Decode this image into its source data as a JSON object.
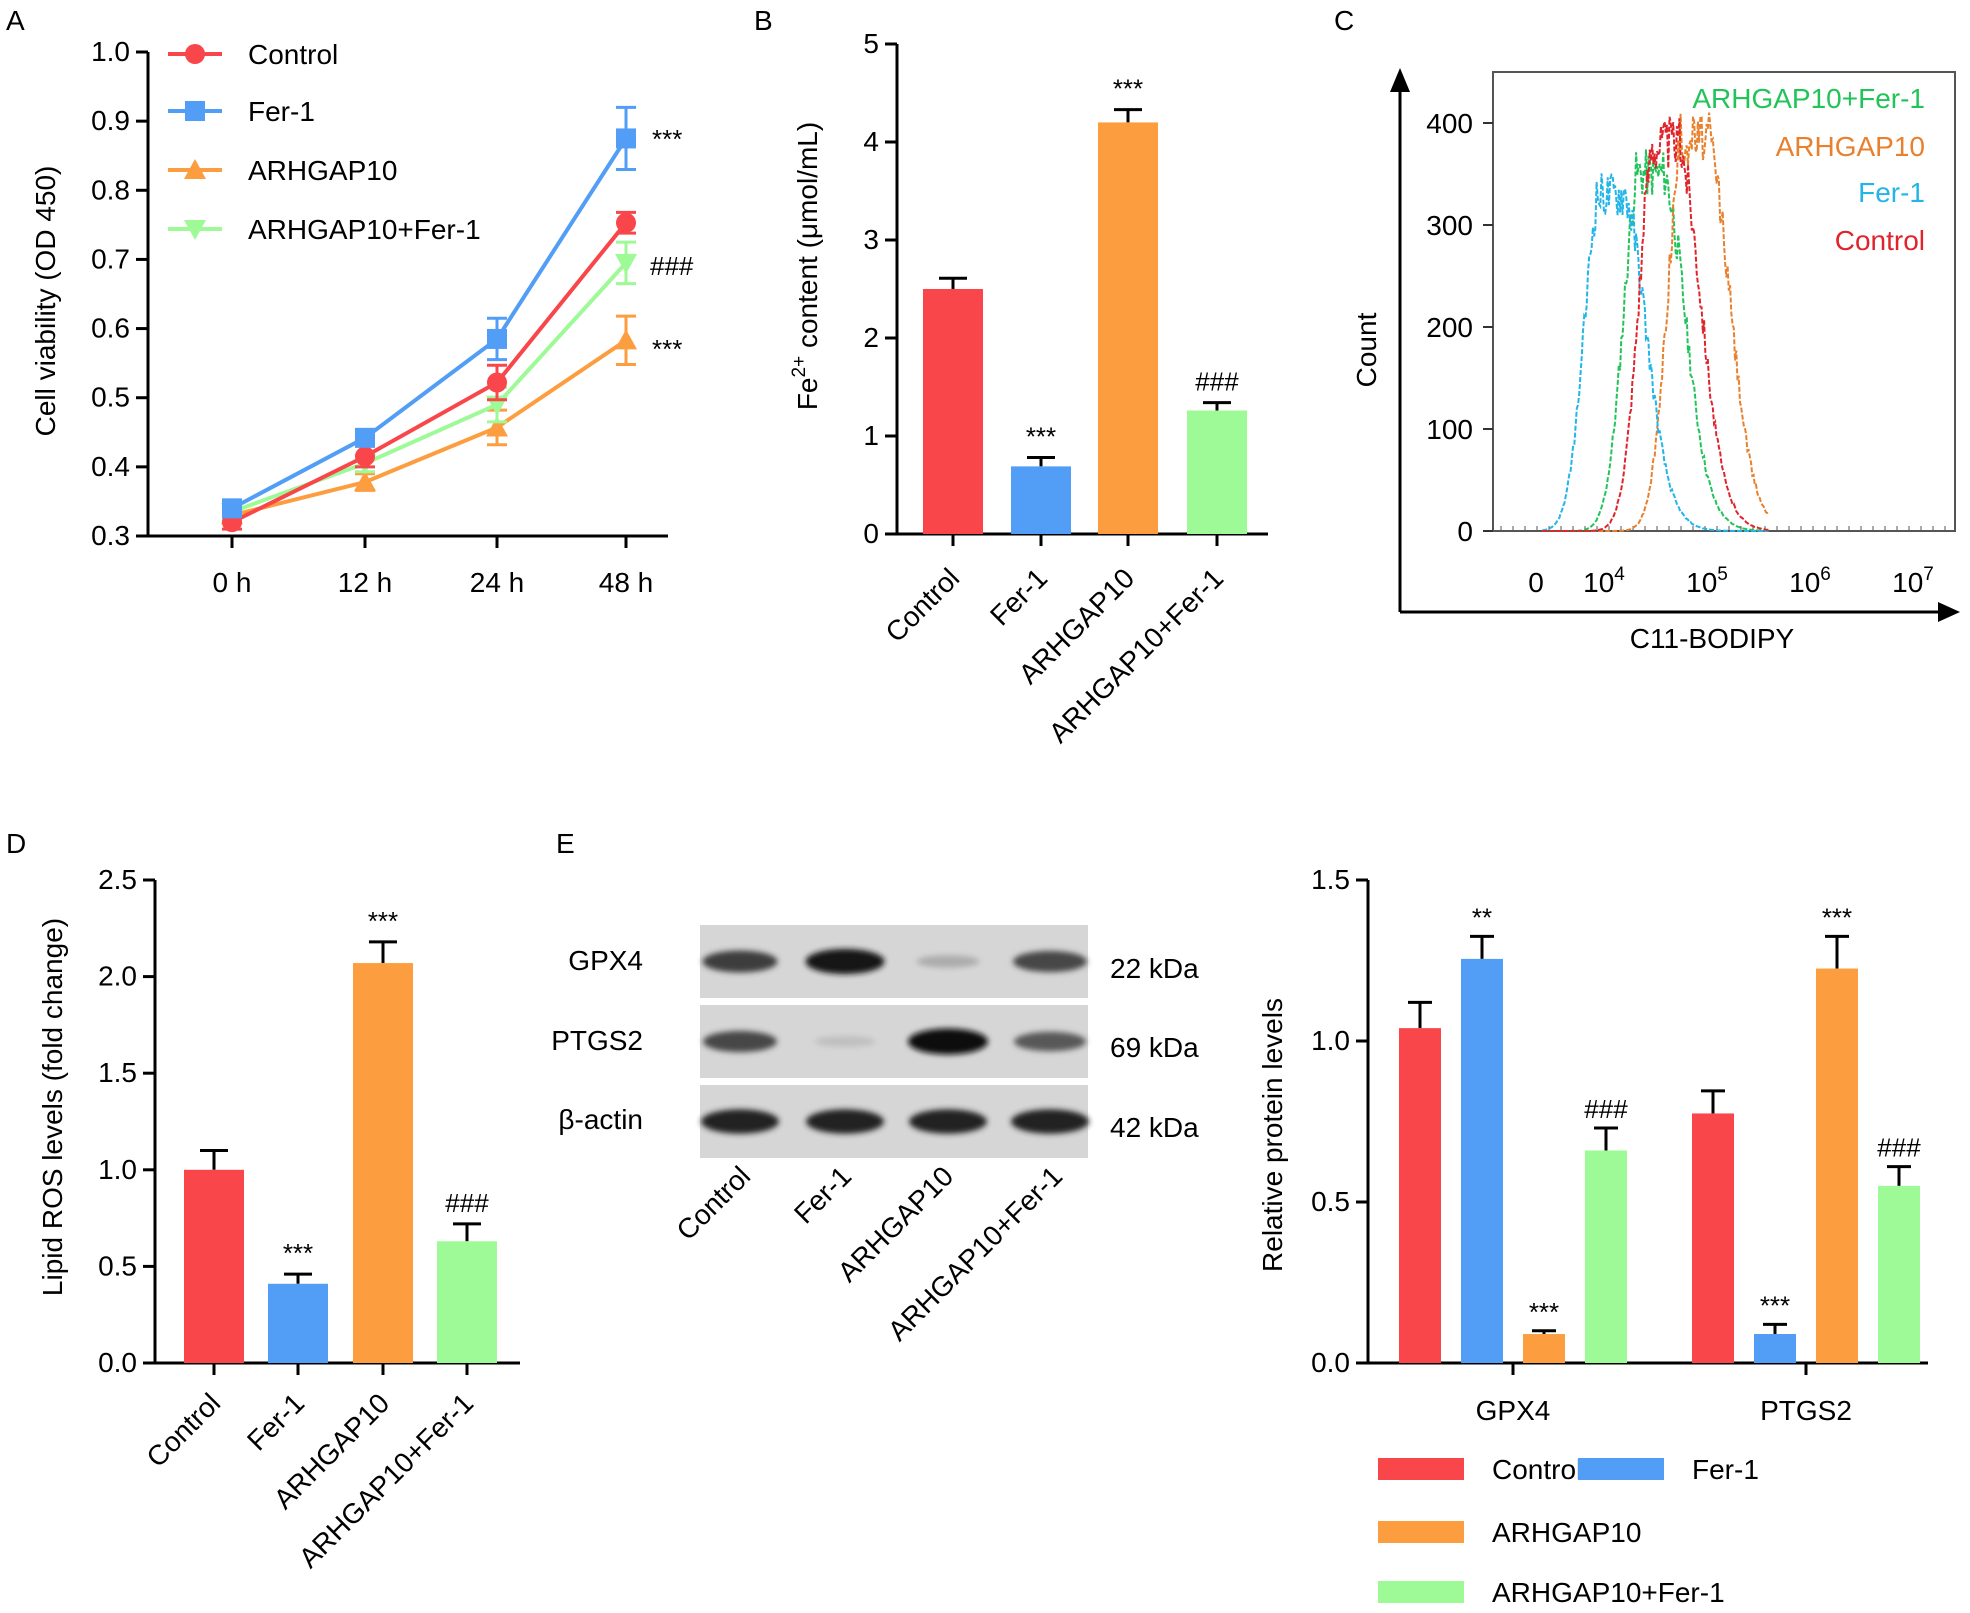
{
  "colors": {
    "control": "#f8464a",
    "fer1": "#529df6",
    "arhgap10": "#fc9e3f",
    "arhgap10_fer1": "#9dfa97",
    "flow_control": "#e0242c",
    "flow_fer1": "#23b5e8",
    "flow_arhgap10": "#e9802d",
    "flow_arhgap10_fer1": "#22c45a"
  },
  "panels": {
    "A": "A",
    "B": "B",
    "C": "C",
    "D": "D",
    "E": "E"
  },
  "chart_data": [
    {
      "panel": "A",
      "type": "line",
      "categories": [
        "0 h",
        "12 h",
        "24 h",
        "48 h"
      ],
      "ylabel": "Cell viability (OD 450)",
      "ylim": [
        0.3,
        1.0
      ],
      "yticks": [
        "0.3",
        "0.4",
        "0.5",
        "0.6",
        "0.7",
        "0.8",
        "0.9",
        "1.0"
      ],
      "legend": "top-left",
      "series": [
        {
          "name": "Control",
          "values": [
            0.32,
            0.415,
            0.522,
            0.753
          ],
          "errors": [
            0.01,
            0.015,
            0.025,
            0.015
          ],
          "marker": "circle",
          "color": "#f8464a"
        },
        {
          "name": "Fer-1",
          "values": [
            0.34,
            0.442,
            0.585,
            0.875
          ],
          "errors": [
            0.01,
            0.01,
            0.03,
            0.045
          ],
          "marker": "square",
          "color": "#529df6"
        },
        {
          "name": "ARHGAP10",
          "values": [
            0.33,
            0.378,
            0.457,
            0.583
          ],
          "errors": [
            0.01,
            0.012,
            0.025,
            0.035
          ],
          "marker": "triangle-up",
          "color": "#fc9e3f"
        },
        {
          "name": "ARHGAP10+Fer-1",
          "values": [
            0.335,
            0.405,
            0.49,
            0.695
          ],
          "errors": [
            0.01,
            0.012,
            0.025,
            0.03
          ],
          "marker": "triangle-down",
          "color": "#9dfa97"
        }
      ],
      "annotations": [
        "***",
        "###",
        "***"
      ]
    },
    {
      "panel": "B",
      "type": "bar",
      "categories": [
        "Control",
        "Fer-1",
        "ARHGAP10",
        "ARHGAP10+Fer-1"
      ],
      "values": [
        2.5,
        0.69,
        4.2,
        1.26
      ],
      "errors": [
        0.11,
        0.09,
        0.13,
        0.08
      ],
      "significance": [
        "",
        "***",
        "***",
        "###"
      ],
      "ylabel_prefix": "Fe",
      "ylabel_sup": "2+",
      "ylabel_suffix": " content (μmol/mL)",
      "ylim": [
        0,
        5
      ],
      "yticks": [
        "0",
        "1",
        "2",
        "3",
        "4",
        "5"
      ]
    },
    {
      "panel": "C",
      "type": "area",
      "xlabel": "C11-BODIPY",
      "ylabel": "Count",
      "ylim": [
        0,
        450
      ],
      "yticks": [
        "0",
        "100",
        "200",
        "300",
        "400"
      ],
      "xtick_zero": "0",
      "xtick_base": "10",
      "xtick_exponents": [
        "4",
        "5",
        "6",
        "7"
      ],
      "xscale": "log",
      "series": [
        {
          "name": "ARHGAP10+Fer-1",
          "peak_log10": 4.35,
          "peak_count": 350,
          "color": "#22c45a"
        },
        {
          "name": "ARHGAP10",
          "peak_log10": 4.78,
          "peak_count": 385,
          "color": "#e9802d"
        },
        {
          "name": "Fer-1",
          "peak_log10": 3.97,
          "peak_count": 330,
          "color": "#23b5e8"
        },
        {
          "name": "Control",
          "peak_log10": 4.5,
          "peak_count": 380,
          "color": "#e0242c"
        }
      ]
    },
    {
      "panel": "D",
      "type": "bar",
      "categories": [
        "Control",
        "Fer-1",
        "ARHGAP10",
        "ARHGAP10+Fer-1"
      ],
      "values": [
        1.0,
        0.41,
        2.07,
        0.63
      ],
      "errors": [
        0.1,
        0.05,
        0.11,
        0.09
      ],
      "significance": [
        "",
        "***",
        "***",
        "###"
      ],
      "ylabel": "Lipid ROS levels (fold change)",
      "ylim": [
        0,
        2.5
      ],
      "yticks": [
        "0.0",
        "0.5",
        "1.0",
        "1.5",
        "2.0",
        "2.5"
      ]
    },
    {
      "panel": "E",
      "type": "bar",
      "categories": [
        "GPX4",
        "PTGS2"
      ],
      "ylabel": "Relative protein levels",
      "ylim": [
        0,
        1.5
      ],
      "yticks": [
        "0.0",
        "0.5",
        "1.0",
        "1.5"
      ],
      "legend": "bottom",
      "series": [
        {
          "name": "Control",
          "values": [
            1.04,
            0.775
          ],
          "errors": [
            0.08,
            0.07
          ],
          "significance": [
            "",
            ""
          ]
        },
        {
          "name": "Fer-1",
          "values": [
            1.255,
            0.09
          ],
          "errors": [
            0.07,
            0.03
          ],
          "significance": [
            "**",
            "***"
          ]
        },
        {
          "name": "ARHGAP10",
          "values": [
            0.09,
            1.225
          ],
          "errors": [
            0.01,
            0.1
          ],
          "significance": [
            "***",
            "***"
          ]
        },
        {
          "name": "ARHGAP10+Fer-1",
          "values": [
            0.66,
            0.55
          ],
          "errors": [
            0.07,
            0.06
          ],
          "significance": [
            "###",
            "###"
          ]
        }
      ]
    }
  ],
  "western_blot": {
    "rows": [
      {
        "protein": "GPX4",
        "size": "22 kDa",
        "intensities": [
          0.75,
          0.95,
          0.15,
          0.7
        ]
      },
      {
        "protein": "PTGS2",
        "size": "69 kDa",
        "intensities": [
          0.7,
          0.05,
          1.0,
          0.6
        ]
      },
      {
        "protein": "β-actin",
        "size": "42 kDa",
        "intensities": [
          0.9,
          0.9,
          0.9,
          0.9
        ]
      }
    ],
    "lanes": [
      "Control",
      "Fer-1",
      "ARHGAP10",
      "ARHGAP10+Fer-1"
    ]
  }
}
